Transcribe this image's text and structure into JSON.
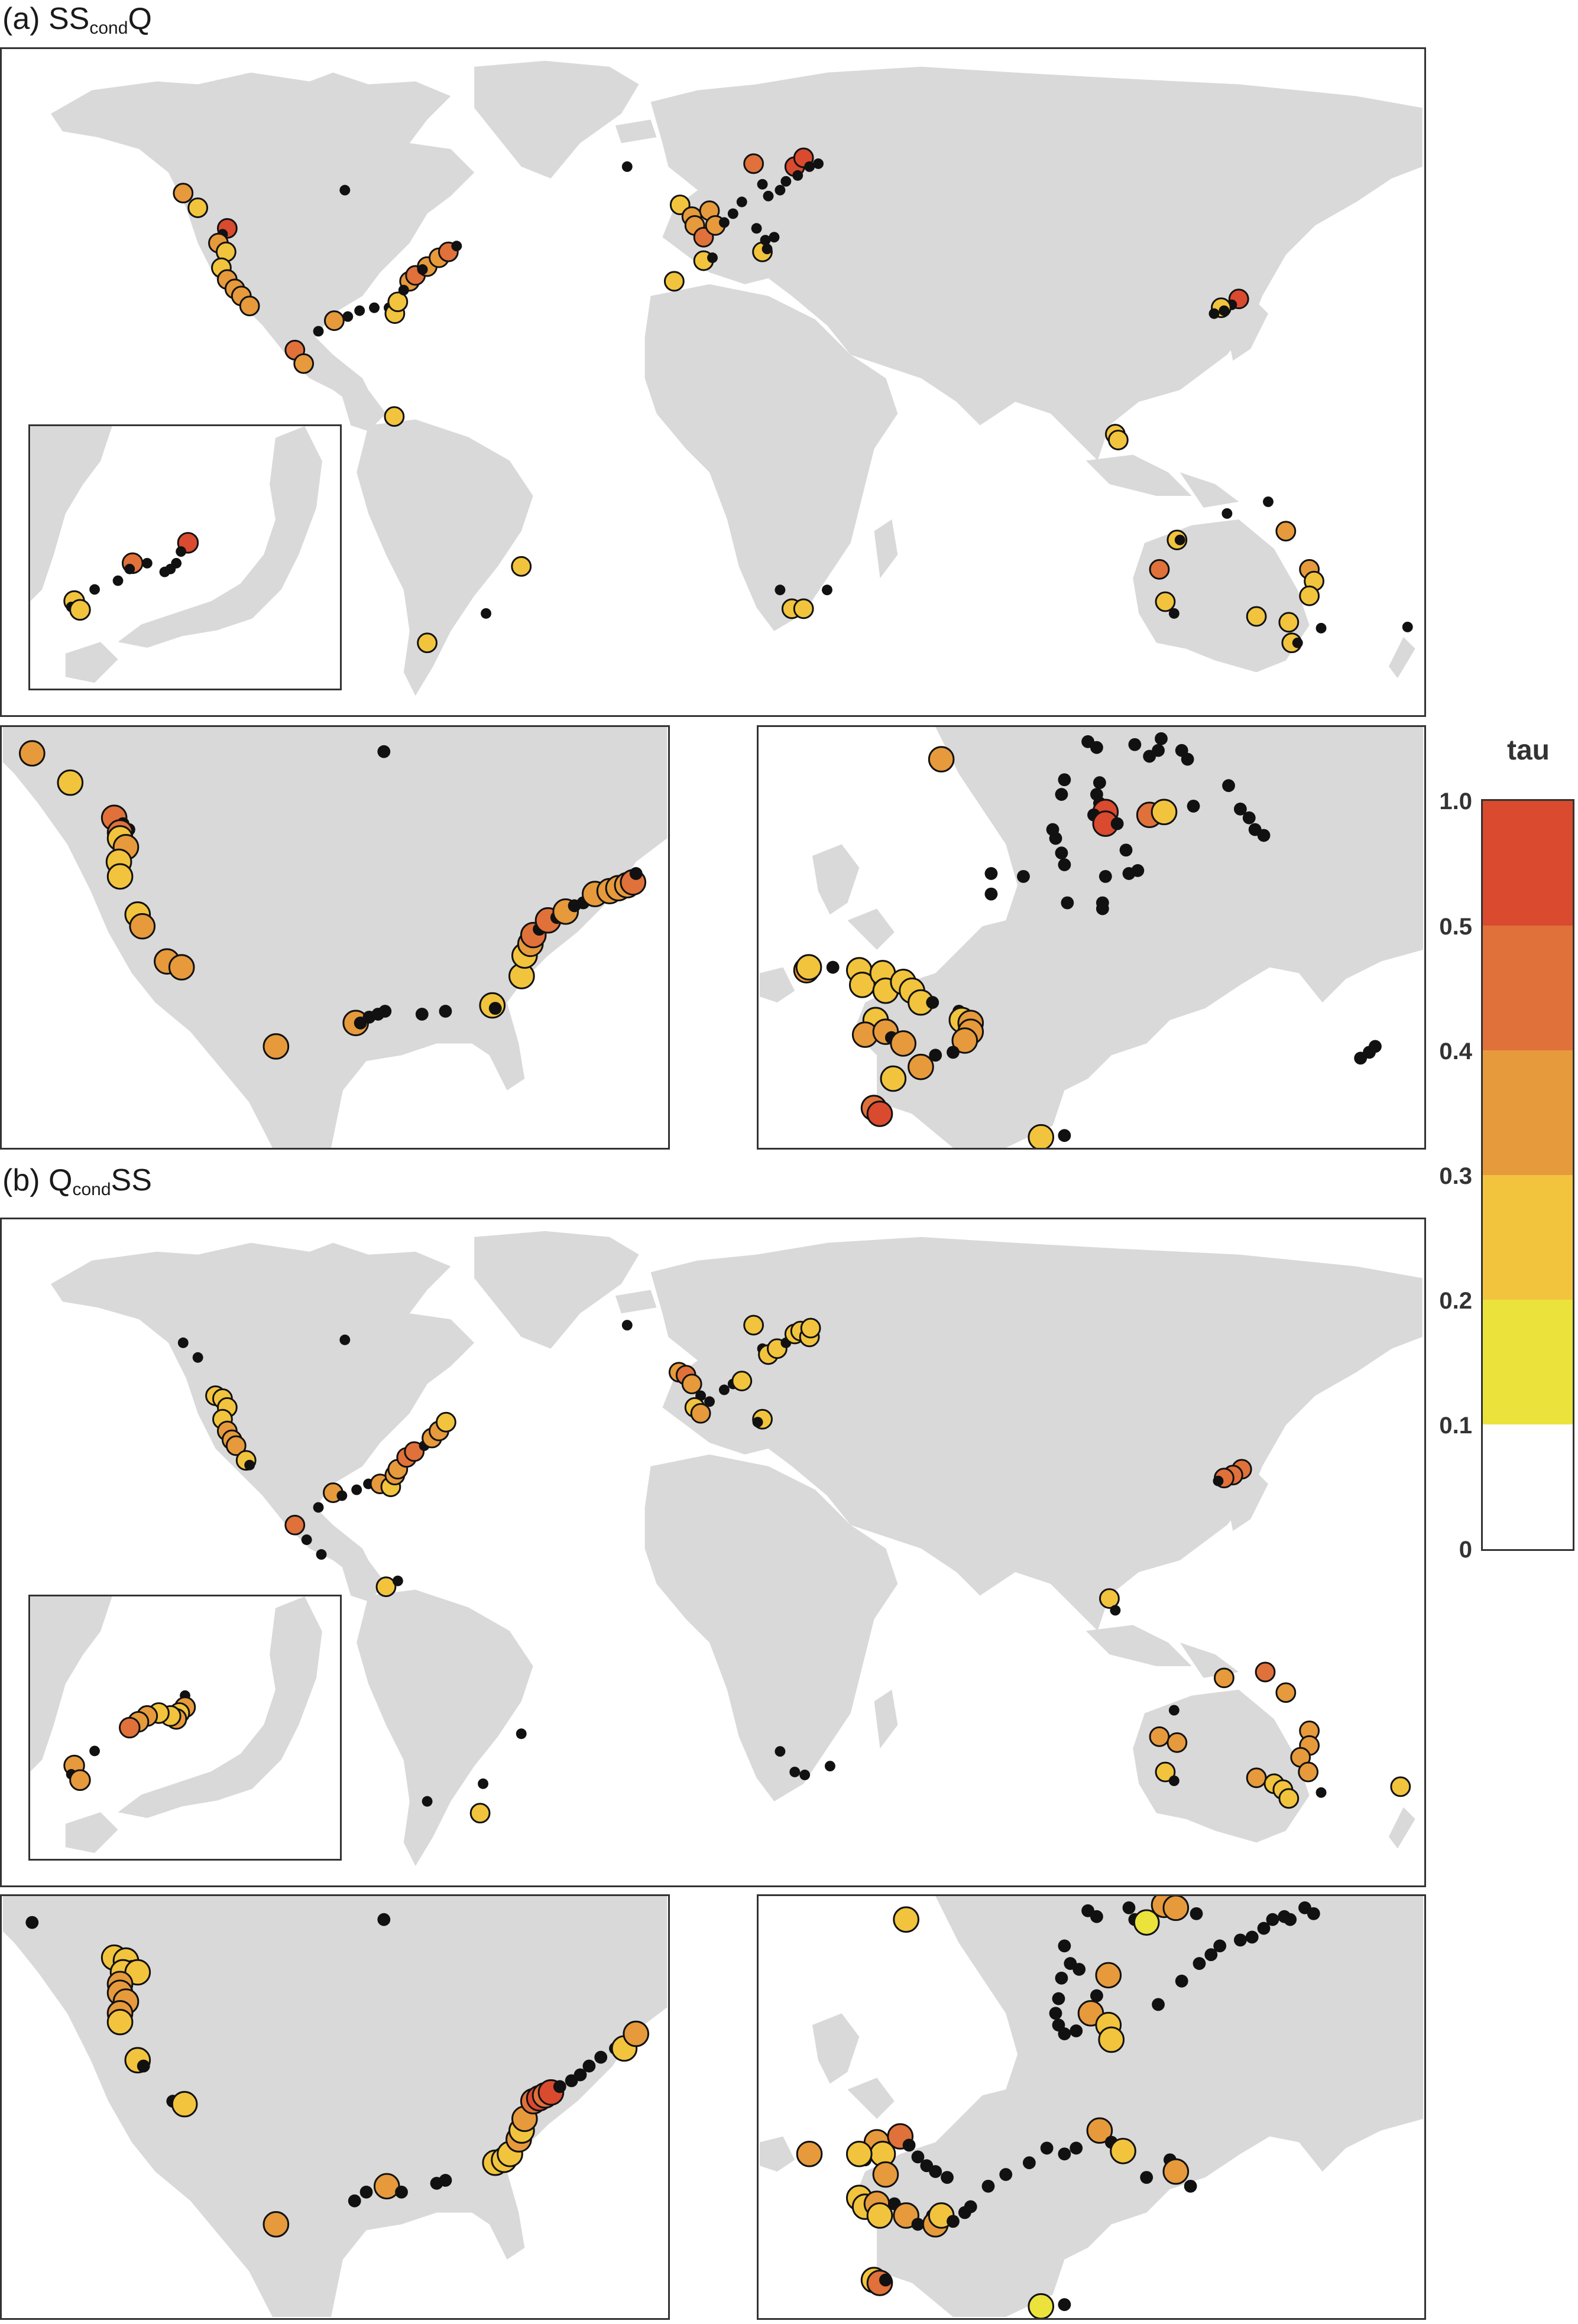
{
  "figure": {
    "panel_a": {
      "prefix": "(a) ",
      "main1": "SS",
      "sub": "cond",
      "main2": "Q"
    },
    "panel_b": {
      "prefix": "(b) ",
      "main1": "Q",
      "sub": "cond",
      "main2": "SS"
    }
  },
  "colorbar": {
    "title": "tau",
    "ticks": [
      "1.0",
      "0.5",
      "0.4",
      "0.3",
      "0.2",
      "0.1",
      "0"
    ],
    "bins": [
      {
        "range": "0.5-1.0",
        "color": "#d94a2f"
      },
      {
        "range": "0.4-0.5",
        "color": "#e0713a"
      },
      {
        "range": "0.3-0.4",
        "color": "#e69a3c"
      },
      {
        "range": "0.2-0.3",
        "color": "#f2c43d"
      },
      {
        "range": "0.1-0.2",
        "color": "#ebe33b"
      },
      {
        "range": "0-0.1",
        "color": "#ffffff"
      }
    ]
  },
  "colors": {
    "land": "#d9d9d9",
    "frame": "#333333",
    "insignificant": "#111111"
  }
}
